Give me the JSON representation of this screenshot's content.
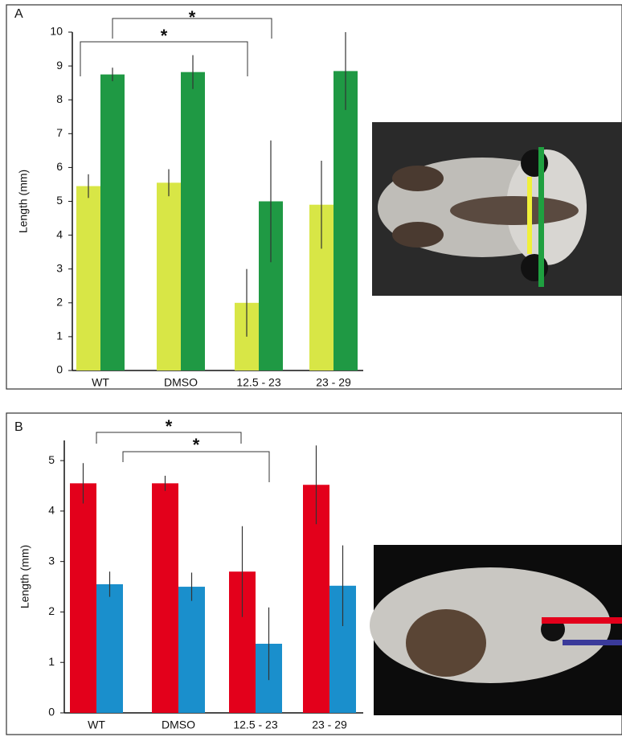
{
  "chart_data": [
    {
      "type": "bar",
      "panel": "A",
      "y_label": "Length (mm)",
      "categories": [
        "WT",
        "DMSO",
        "12.5 - 23",
        "23 - 29"
      ],
      "series": [
        {
          "color": "#d8e646",
          "values": [
            5.45,
            5.55,
            2.0,
            4.9
          ],
          "errors": [
            0.35,
            0.4,
            1.0,
            1.3
          ]
        },
        {
          "color": "#1f9944",
          "values": [
            8.75,
            8.82,
            5.0,
            8.85
          ],
          "errors": [
            0.2,
            0.5,
            1.8,
            1.15
          ]
        }
      ],
      "ylim": [
        0,
        10
      ],
      "yticks": [
        0,
        1,
        2,
        3,
        4,
        5,
        6,
        7,
        8,
        9,
        10
      ],
      "annotations": [
        "*",
        "*"
      ]
    },
    {
      "type": "bar",
      "panel": "B",
      "y_label": "Length (mm)",
      "categories": [
        "WT",
        "DMSO",
        "12.5 - 23",
        "23 - 29"
      ],
      "series": [
        {
          "color": "#e3001b",
          "values": [
            4.55,
            4.55,
            2.8,
            4.52
          ],
          "errors": [
            0.4,
            0.15,
            0.9,
            0.78
          ]
        },
        {
          "color": "#1a8fcc",
          "values": [
            2.55,
            2.5,
            1.37,
            2.52
          ],
          "errors": [
            0.25,
            0.28,
            0.72,
            0.8
          ]
        }
      ],
      "ylim": [
        0,
        5.4
      ],
      "yticks": [
        0,
        1,
        2,
        3,
        4,
        5
      ],
      "annotations": [
        "*",
        "*"
      ]
    }
  ]
}
